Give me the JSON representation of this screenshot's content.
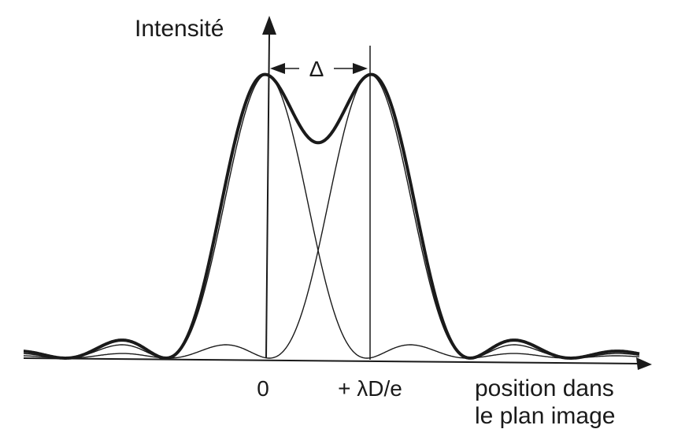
{
  "y_axis_label": "Intensité",
  "x_axis_label_line1": "position dans",
  "x_axis_label_line2": "le plan image",
  "tick_origin": "0",
  "tick_shift": "+ λD/e",
  "separation_label": "Δ",
  "curves": {
    "psf_left": "airy pattern centered at 0",
    "psf_right": "airy pattern centered at +λD/e",
    "sum": "combined intensity"
  },
  "colors": {
    "ink": "#1a1a1a",
    "background": "#ffffff"
  }
}
